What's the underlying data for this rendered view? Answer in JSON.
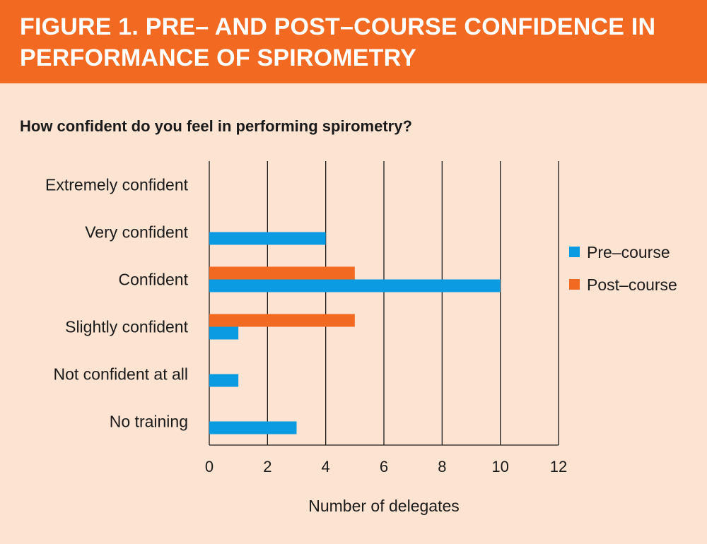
{
  "figure": {
    "title": "FIGURE 1. PRE– AND POST–COURSE CONFIDENCE IN PERFORMANCE OF SPIROMETRY",
    "question": "How confident do you feel in performing spirometry?"
  },
  "colors": {
    "banner": "#f26a22",
    "background": "#fde3d1",
    "pre": "#0a9be3",
    "post": "#f26a22"
  },
  "chart_data": {
    "type": "bar",
    "orientation": "horizontal",
    "categories": [
      "Extremely confident",
      "Very confident",
      "Confident",
      "Slightly confident",
      "Not confident at all",
      "No training"
    ],
    "series": [
      {
        "name": "Pre–course",
        "values": [
          0,
          4,
          10,
          1,
          1,
          3
        ]
      },
      {
        "name": "Post–course",
        "values": [
          0,
          0,
          5,
          5,
          0,
          0
        ]
      }
    ],
    "xlabel": "Number of delegates",
    "ylabel": "",
    "xlim": [
      0,
      12
    ],
    "xticks": [
      "0",
      "2",
      "4",
      "6",
      "8",
      "10",
      "12"
    ],
    "grid": true,
    "legend": "right"
  }
}
